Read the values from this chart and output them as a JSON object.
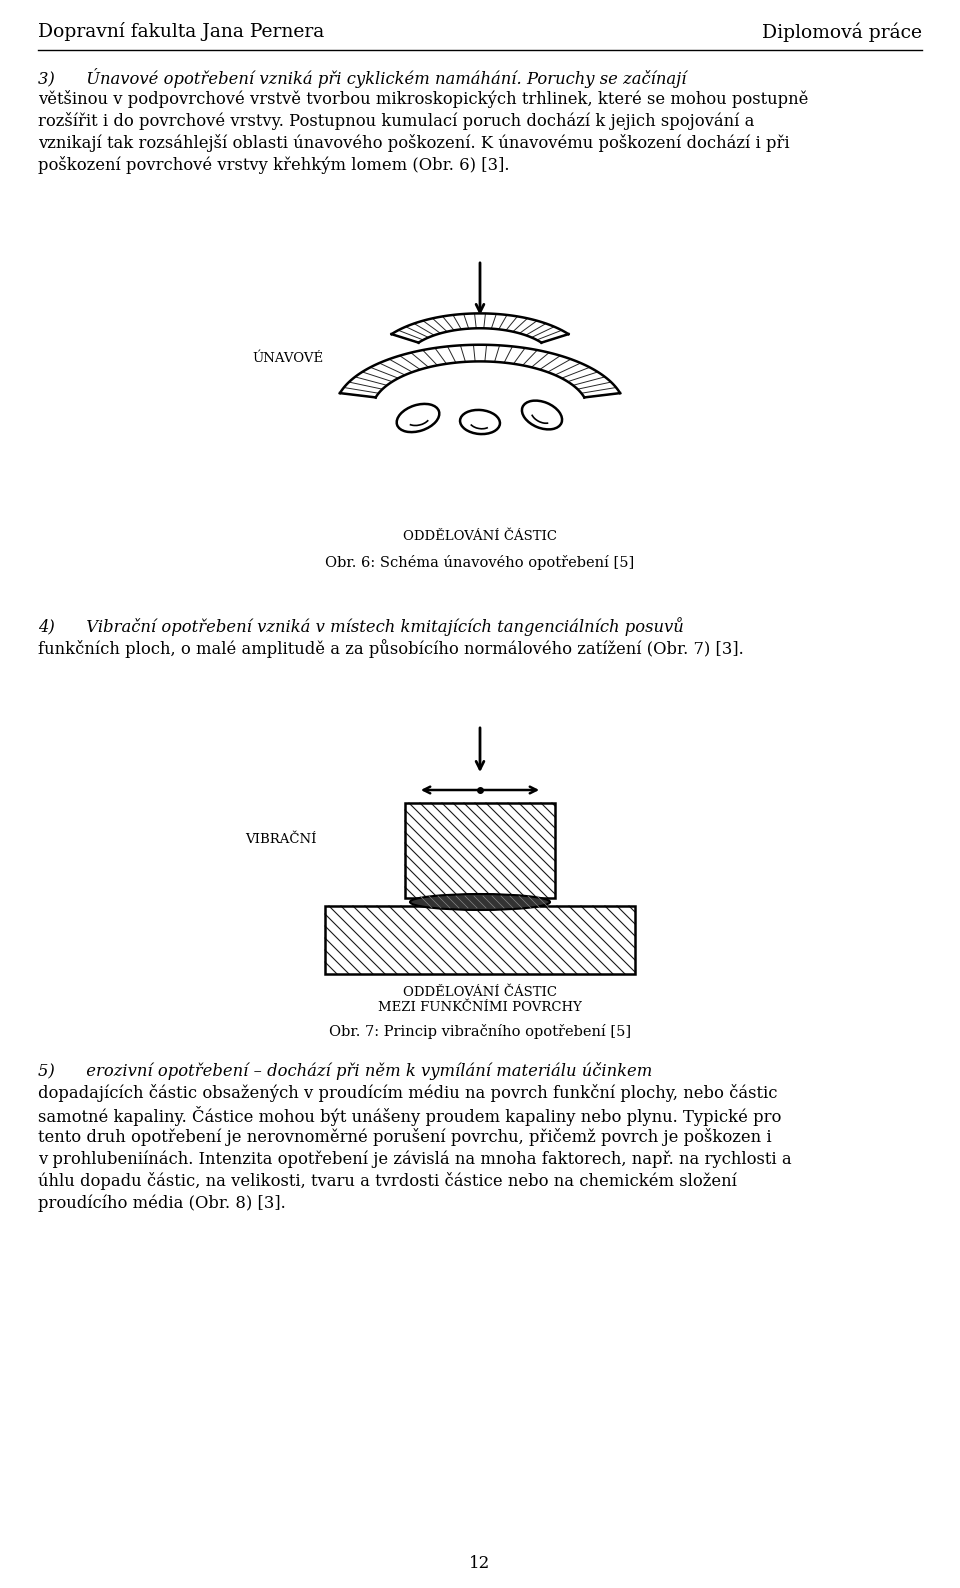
{
  "header_left": "Dopravní fakulta Jana Pernera",
  "header_right": "Diplomová práce",
  "page_number": "12",
  "bg_color": "#ffffff",
  "body_font_size": 11.8,
  "header_font_size": 13.5,
  "caption_font_size": 10.5,
  "label_font_size": 9.5,
  "lh": 22,
  "para3_lines": [
    "3)      Únavové opotřebení vzniká při cyklickém namáhání. Poruchy se začínají",
    "většinou v podpovrchové vrstvě tvorbou mikroskopických trhlinek, které se mohou postupně",
    "rozšířit i do povrchové vrstvy. Postupnou kumulací poruch dochází k jejich spojování a",
    "vznikají tak rozsáhlejší oblasti únavového poškození. K únavovému poškození dochází i při",
    "poškození povrchové vrstvy křehkým lomem (Obr. 6) [3]."
  ],
  "label_unavove": "ÚNAVOVÉ",
  "label_oddelovani1": "ODDĚLOVÁNÍ ČÁSTIC",
  "caption1": "Obr. 6: Schéma únavového opotřebení [5]",
  "para4_lines": [
    "4)      Vibrační opotřebení vzniká v místech kmitajících tangenciálních posuvů",
    "funkčních ploch, o malé amplitudě a za působícího normálového zatížení (Obr. 7) [3]."
  ],
  "label_vibracni": "VIBRAČNÍ",
  "label_oddelovani2": "ODDĚLOVÁNÍ ČÁSTIC",
  "label_mezi": "MEZI FUNKČNÍMI POVRCHY",
  "caption2": "Obr. 7: Princip vibračního opotřebení [5]",
  "para5_lines": [
    "5)      erozivní opotřebení – dochází při něm k vymílání materiálu účinkem",
    "dopadajících částic obsažených v proudícím médiu na povrch funkční plochy, nebo částic",
    "samotné kapaliny. Částice mohou být unášeny proudem kapaliny nebo plynu. Typické pro",
    "tento druh opotřebení je nerovnoměrné porušení povrchu, přičemž povrch je poškozen i",
    "v prohlubeniínách. Intenzita opotřebení je závislá na mnoha faktorech, např. na rychlosti a",
    "úhlu dopadu částic, na velikosti, tvaru a tvrdosti částice nebo na chemickém složení",
    "proudícího média (Obr. 8) [3]."
  ]
}
